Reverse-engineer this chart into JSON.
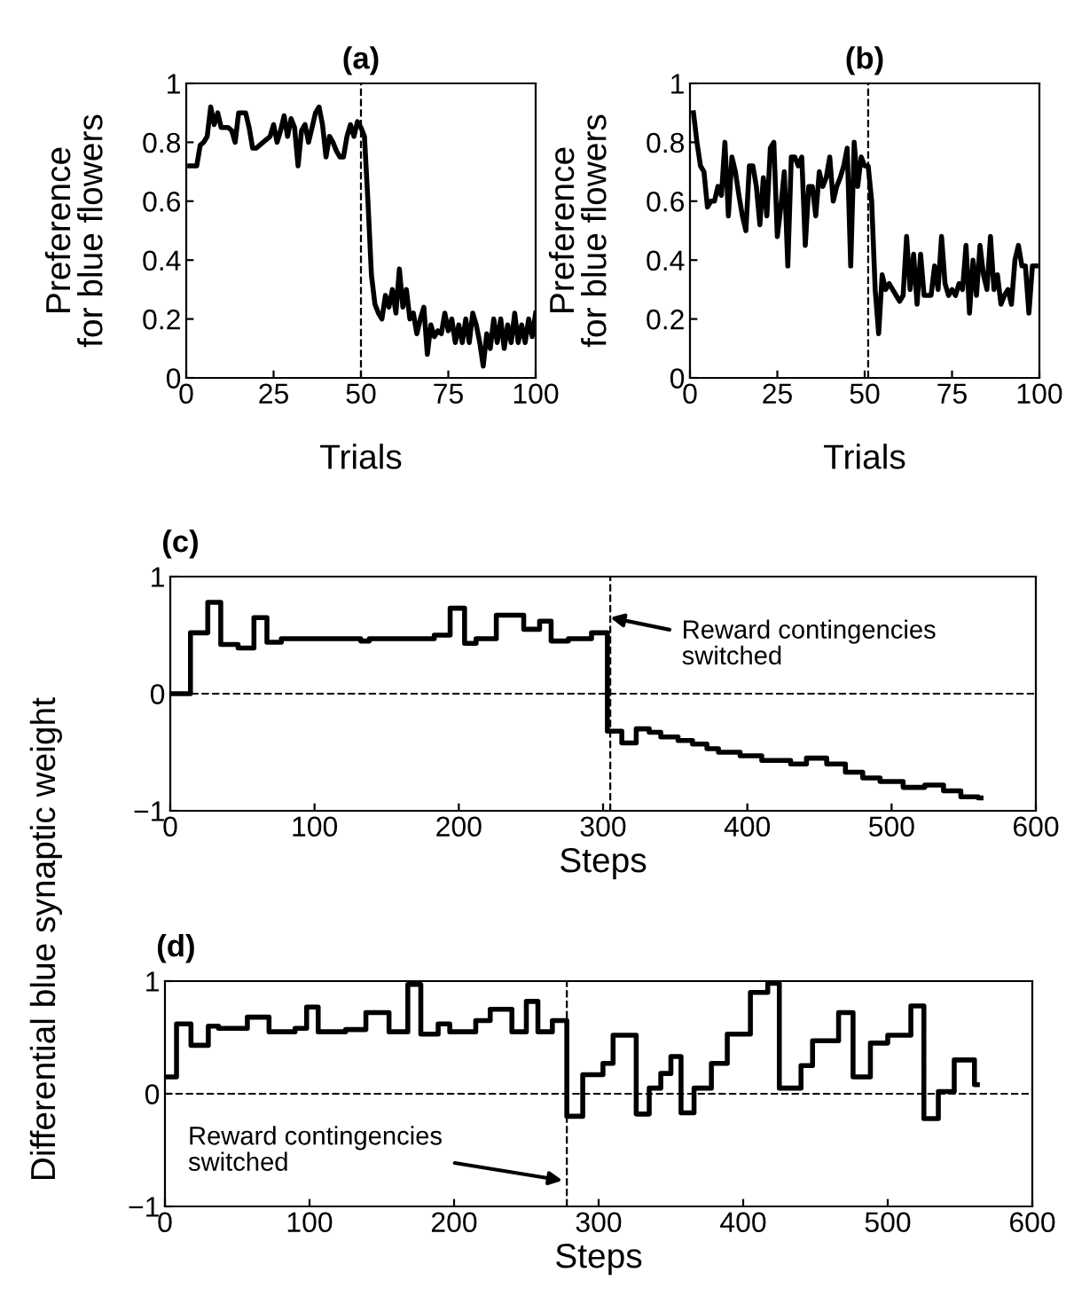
{
  "chart_data": [
    {
      "type": "line",
      "title": "(a)",
      "xlabel": "Trials",
      "ylabel": "Preference\nfor blue flowers",
      "xlim": [
        0,
        100
      ],
      "ylim": [
        0,
        1
      ],
      "xticks": [
        0,
        25,
        50,
        75,
        100
      ],
      "yticks": [
        0,
        0.2,
        0.4,
        0.6,
        0.8,
        1
      ],
      "grid": false,
      "legend": false,
      "line_style": "solid",
      "ref_lines": [
        {
          "axis": "x",
          "value": 50,
          "line_style": "dashed",
          "color": "#000000"
        }
      ],
      "series": [
        {
          "color": "#000000",
          "x": [
            1,
            3,
            4,
            5,
            6,
            7,
            8,
            9,
            10,
            12,
            13,
            14,
            15,
            17,
            18,
            19,
            20,
            22,
            24,
            25,
            26,
            27,
            28,
            29,
            30,
            31,
            32,
            33,
            34,
            35,
            36,
            37,
            38,
            39,
            40,
            41,
            42,
            43,
            44,
            45,
            46,
            47,
            48,
            49,
            50,
            51,
            52,
            53,
            54,
            55,
            56,
            57,
            58,
            59,
            60,
            61,
            62,
            63,
            64,
            65,
            66,
            67,
            68,
            69,
            70,
            71,
            72,
            73,
            74,
            75,
            76,
            77,
            78,
            79,
            80,
            81,
            82,
            83,
            84,
            85,
            86,
            87,
            88,
            89,
            90,
            91,
            92,
            93,
            94,
            95,
            96,
            97,
            98,
            99,
            100
          ],
          "values": [
            0.72,
            0.72,
            0.79,
            0.8,
            0.82,
            0.92,
            0.86,
            0.9,
            0.85,
            0.85,
            0.84,
            0.8,
            0.9,
            0.9,
            0.85,
            0.78,
            0.78,
            0.8,
            0.82,
            0.86,
            0.8,
            0.84,
            0.89,
            0.82,
            0.88,
            0.85,
            0.72,
            0.84,
            0.86,
            0.8,
            0.85,
            0.9,
            0.92,
            0.86,
            0.75,
            0.82,
            0.8,
            0.77,
            0.75,
            0.75,
            0.82,
            0.86,
            0.82,
            0.87,
            0.85,
            0.82,
            0.6,
            0.35,
            0.25,
            0.22,
            0.2,
            0.28,
            0.24,
            0.3,
            0.22,
            0.37,
            0.24,
            0.3,
            0.2,
            0.22,
            0.15,
            0.2,
            0.24,
            0.08,
            0.18,
            0.14,
            0.16,
            0.15,
            0.22,
            0.16,
            0.2,
            0.12,
            0.18,
            0.12,
            0.2,
            0.12,
            0.22,
            0.18,
            0.12,
            0.04,
            0.15,
            0.1,
            0.2,
            0.12,
            0.2,
            0.1,
            0.18,
            0.12,
            0.22,
            0.12,
            0.18,
            0.12,
            0.2,
            0.14,
            0.22
          ]
        }
      ]
    },
    {
      "type": "line",
      "title": "(b)",
      "xlabel": "Trials",
      "ylabel": "Preference\nfor blue flowers",
      "xlim": [
        0,
        100
      ],
      "ylim": [
        0,
        1
      ],
      "xticks": [
        0,
        25,
        50,
        75,
        100
      ],
      "yticks": [
        0,
        0.2,
        0.4,
        0.6,
        0.8,
        1
      ],
      "grid": false,
      "legend": false,
      "line_style": "solid",
      "ref_lines": [
        {
          "axis": "x",
          "value": 51,
          "line_style": "dashed",
          "color": "#000000"
        }
      ],
      "series": [
        {
          "color": "#000000",
          "x": [
            1,
            2,
            3,
            4,
            5,
            6,
            7,
            8,
            9,
            10,
            11,
            12,
            13,
            14,
            15,
            16,
            17,
            18,
            19,
            20,
            21,
            22,
            23,
            24,
            25,
            26,
            27,
            28,
            29,
            30,
            31,
            32,
            33,
            34,
            35,
            36,
            37,
            38,
            39,
            40,
            41,
            42,
            43,
            44,
            45,
            46,
            47,
            48,
            49,
            50,
            51,
            52,
            53,
            54,
            55,
            56,
            57,
            58,
            59,
            60,
            61,
            62,
            63,
            64,
            65,
            66,
            67,
            68,
            69,
            70,
            71,
            72,
            73,
            74,
            75,
            76,
            77,
            78,
            79,
            80,
            81,
            82,
            83,
            84,
            85,
            86,
            87,
            88,
            89,
            90,
            91,
            92,
            93,
            94,
            95,
            96,
            97,
            98,
            99
          ],
          "values": [
            0.9,
            0.8,
            0.72,
            0.7,
            0.58,
            0.6,
            0.6,
            0.65,
            0.62,
            0.8,
            0.55,
            0.75,
            0.7,
            0.62,
            0.55,
            0.5,
            0.72,
            0.72,
            0.65,
            0.52,
            0.68,
            0.55,
            0.78,
            0.8,
            0.48,
            0.58,
            0.7,
            0.38,
            0.75,
            0.75,
            0.72,
            0.75,
            0.45,
            0.65,
            0.65,
            0.55,
            0.7,
            0.65,
            0.68,
            0.75,
            0.6,
            0.65,
            0.68,
            0.72,
            0.78,
            0.38,
            0.8,
            0.65,
            0.75,
            0.72,
            0.72,
            0.6,
            0.3,
            0.15,
            0.35,
            0.3,
            0.32,
            0.3,
            0.28,
            0.26,
            0.28,
            0.48,
            0.3,
            0.42,
            0.25,
            0.42,
            0.28,
            0.28,
            0.28,
            0.38,
            0.3,
            0.48,
            0.32,
            0.28,
            0.3,
            0.28,
            0.32,
            0.3,
            0.45,
            0.22,
            0.4,
            0.28,
            0.45,
            0.35,
            0.3,
            0.48,
            0.3,
            0.35,
            0.25,
            0.28,
            0.3,
            0.25,
            0.4,
            0.45,
            0.38,
            0.38,
            0.22,
            0.38,
            0.38
          ]
        }
      ]
    },
    {
      "type": "step",
      "title": "(c)",
      "xlabel": "Steps",
      "ylabel": "Differential blue synaptic weight",
      "xlim": [
        0,
        600
      ],
      "ylim": [
        -1,
        1
      ],
      "xticks": [
        0,
        100,
        200,
        300,
        400,
        500,
        600
      ],
      "yticks": [
        {
          "value": -1,
          "label": "−1"
        },
        0,
        1
      ],
      "grid": false,
      "legend": false,
      "line_style": "solid",
      "ref_lines": [
        {
          "axis": "x",
          "value": 305,
          "line_style": "dashed",
          "color": "#000000"
        },
        {
          "axis": "y",
          "value": 0,
          "line_style": "dashed",
          "color": "#000000"
        }
      ],
      "annotations": [
        {
          "text": "Reward contingencies\nswitched",
          "x": 305,
          "y": 0.65
        }
      ],
      "series": [
        {
          "color": "#000000",
          "x": [
            0,
            14,
            26,
            35,
            47,
            58,
            67,
            77,
            132,
            138,
            183,
            194,
            204,
            212,
            226,
            245,
            256,
            264,
            276,
            292,
            303,
            313,
            323,
            332,
            340,
            352,
            362,
            372,
            380,
            395,
            410,
            430,
            441,
            455,
            468,
            480,
            492,
            508,
            523,
            536,
            548,
            560,
            562
          ],
          "values": [
            0,
            0.52,
            0.78,
            0.42,
            0.39,
            0.65,
            0.44,
            0.47,
            0.45,
            0.47,
            0.5,
            0.73,
            0.43,
            0.47,
            0.67,
            0.55,
            0.62,
            0.45,
            0.47,
            0.52,
            -0.32,
            -0.42,
            -0.3,
            -0.33,
            -0.37,
            -0.4,
            -0.43,
            -0.47,
            -0.5,
            -0.53,
            -0.57,
            -0.6,
            -0.55,
            -0.6,
            -0.67,
            -0.72,
            -0.75,
            -0.8,
            -0.78,
            -0.83,
            -0.88,
            -0.89,
            -0.89
          ]
        }
      ]
    },
    {
      "type": "step",
      "title": "(d)",
      "xlabel": "Steps",
      "xlim": [
        0,
        600
      ],
      "ylim": [
        -1,
        1
      ],
      "xticks": [
        0,
        100,
        200,
        300,
        400,
        500,
        600
      ],
      "yticks": [
        {
          "value": -1,
          "label": "−1"
        },
        0,
        1
      ],
      "grid": false,
      "legend": false,
      "line_style": "solid",
      "ref_lines": [
        {
          "axis": "x",
          "value": 278,
          "line_style": "dashed",
          "color": "#000000"
        },
        {
          "axis": "y",
          "value": 0,
          "line_style": "dashed",
          "color": "#000000"
        }
      ],
      "annotations": [
        {
          "text": "Reward contingencies\nswitched",
          "x": 275,
          "y": -0.77
        }
      ],
      "series": [
        {
          "color": "#000000",
          "x": [
            0,
            8,
            18,
            30,
            37,
            57,
            72,
            90,
            98,
            106,
            125,
            139,
            155,
            168,
            177,
            189,
            197,
            215,
            225,
            240,
            250,
            258,
            268,
            278,
            289,
            303,
            310,
            326,
            335,
            343,
            350,
            357,
            366,
            378,
            389,
            405,
            417,
            425,
            440,
            448,
            466,
            476,
            488,
            500,
            516,
            525,
            535,
            546,
            560,
            562
          ],
          "values": [
            0.15,
            0.62,
            0.43,
            0.6,
            0.58,
            0.68,
            0.55,
            0.58,
            0.77,
            0.55,
            0.57,
            0.72,
            0.55,
            0.97,
            0.53,
            0.62,
            0.55,
            0.65,
            0.75,
            0.55,
            0.82,
            0.55,
            0.65,
            -0.2,
            0.17,
            0.27,
            0.52,
            -0.18,
            0.05,
            0.18,
            0.33,
            -0.17,
            0.05,
            0.27,
            0.53,
            0.9,
            0.98,
            0.05,
            0.25,
            0.47,
            0.72,
            0.15,
            0.45,
            0.52,
            0.78,
            -0.22,
            0.02,
            0.3,
            0.08,
            0.08
          ]
        }
      ]
    }
  ]
}
